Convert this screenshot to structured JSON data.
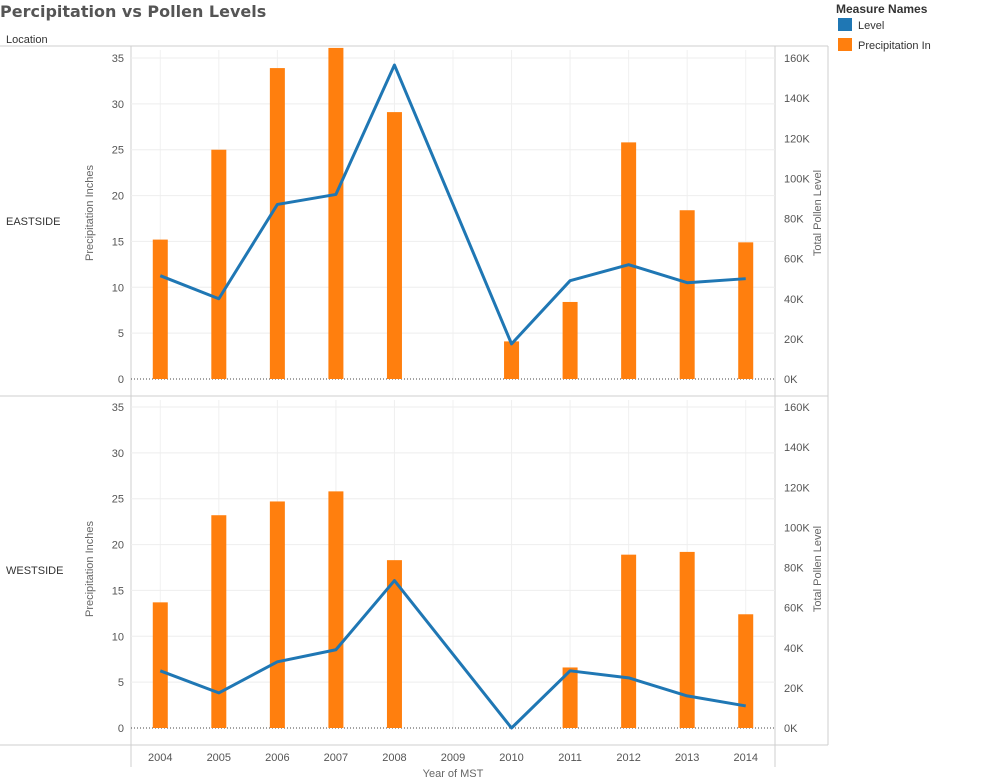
{
  "title": "Percipitation vs Pollen Levels",
  "row_header": "Location",
  "legend": {
    "title": "Measure Names",
    "items": [
      {
        "label": "Level",
        "color": "#1f77b4"
      },
      {
        "label": "Precipitation In",
        "color": "#ff7f0e"
      }
    ]
  },
  "chart_data": {
    "type": "bar",
    "categories": [
      "2004",
      "2005",
      "2006",
      "2007",
      "2008",
      "2009",
      "2010",
      "2011",
      "2012",
      "2013",
      "2014"
    ],
    "xlabel": "Year of MST",
    "ylabel_left": "Precipitation Inches",
    "ylabel_right": "Total Pollen Level",
    "ylim_left": [
      0,
      38
    ],
    "ylim_right": [
      0,
      160000
    ],
    "yticks_left": [
      "0",
      "5",
      "10",
      "15",
      "20",
      "25",
      "30",
      "35"
    ],
    "yticks_right": [
      "0K",
      "20K",
      "40K",
      "60K",
      "80K",
      "100K",
      "120K",
      "140K",
      "160K"
    ],
    "panels": [
      {
        "name": "EASTSIDE",
        "series": [
          {
            "name": "Precipitation In",
            "kind": "bar",
            "values": [
              15.2,
              25.0,
              33.9,
              36.1,
              29.1,
              null,
              4.1,
              8.4,
              25.8,
              18.4,
              14.9
            ]
          },
          {
            "name": "Level",
            "kind": "line",
            "values": [
              51500,
              40000,
              87000,
              92000,
              156500,
              null,
              17500,
              49000,
              57000,
              48000,
              50000
            ]
          }
        ]
      },
      {
        "name": "WESTSIDE",
        "series": [
          {
            "name": "Precipitation In",
            "kind": "bar",
            "values": [
              13.7,
              23.2,
              24.7,
              25.8,
              18.3,
              null,
              null,
              6.6,
              18.9,
              19.2,
              12.4
            ]
          },
          {
            "name": "Level",
            "kind": "line",
            "values": [
              28500,
              17500,
              33000,
              39000,
              73500,
              null,
              0,
              28500,
              25000,
              16000,
              11000
            ]
          }
        ]
      }
    ]
  }
}
